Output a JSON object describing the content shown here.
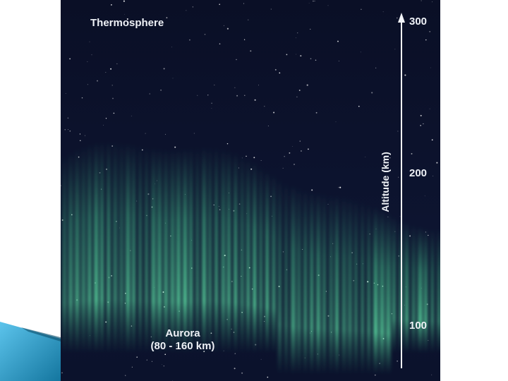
{
  "region_label": "Thermosphere",
  "aurora": {
    "name": "Aurora",
    "range": "(80 - 160 km)"
  },
  "axis": {
    "label": "Altitude (km)",
    "ticks": [
      {
        "value": 300,
        "label": "300"
      },
      {
        "value": 200,
        "label": "200"
      },
      {
        "value": 100,
        "label": "100"
      }
    ]
  },
  "colors": {
    "sky": "#0c1129",
    "aurora_green": "#4fd79a",
    "text": "#eef1f6",
    "corner_accent": "#1f9fd6"
  }
}
